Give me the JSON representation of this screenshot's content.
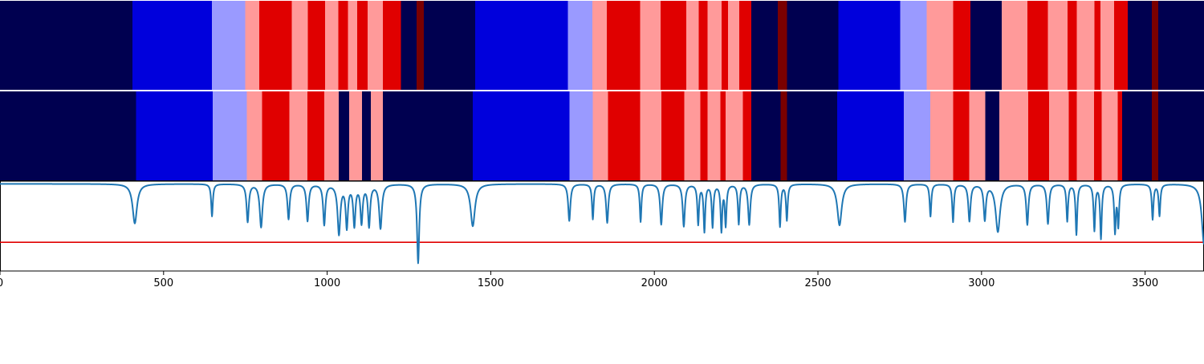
{
  "palette": {
    "dark_navy": "#000050",
    "blue": "#0000dc",
    "light_blue": "#9a9aff",
    "light_red": "#ff9a9a",
    "red": "#e00000",
    "dark_red": "#7a0000",
    "trace": "#1f77b4",
    "threshold": "#e00000"
  },
  "chart_data": {
    "type": "heatmap",
    "title": "",
    "xlabel": "",
    "ylabel": "",
    "xlim": [
      0,
      3680
    ],
    "x_ticks": [
      0,
      500,
      1000,
      1500,
      2000,
      2500,
      3000,
      3500
    ],
    "x_tick_labels": [
      "0",
      "500",
      "1000",
      "1500",
      "2000",
      "2500",
      "3000",
      "3500"
    ],
    "state_rows": [
      {
        "segments": [
          [
            0,
            405,
            "dark_navy"
          ],
          [
            405,
            648,
            "blue"
          ],
          [
            648,
            749,
            "light_blue"
          ],
          [
            749,
            793,
            "light_red"
          ],
          [
            793,
            892,
            "red"
          ],
          [
            892,
            941,
            "light_red"
          ],
          [
            941,
            993,
            "red"
          ],
          [
            993,
            1034,
            "light_red"
          ],
          [
            1034,
            1063,
            "red"
          ],
          [
            1063,
            1092,
            "light_red"
          ],
          [
            1092,
            1124,
            "red"
          ],
          [
            1124,
            1170,
            "light_red"
          ],
          [
            1170,
            1226,
            "red"
          ],
          [
            1226,
            1273,
            "dark_navy"
          ],
          [
            1273,
            1295,
            "dark_red"
          ],
          [
            1295,
            1452,
            "dark_navy"
          ],
          [
            1452,
            1736,
            "blue"
          ],
          [
            1736,
            1810,
            "light_blue"
          ],
          [
            1810,
            1855,
            "light_red"
          ],
          [
            1855,
            1957,
            "red"
          ],
          [
            1957,
            2019,
            "light_red"
          ],
          [
            2019,
            2097,
            "red"
          ],
          [
            2097,
            2136,
            "light_red"
          ],
          [
            2136,
            2163,
            "red"
          ],
          [
            2163,
            2205,
            "light_red"
          ],
          [
            2205,
            2225,
            "red"
          ],
          [
            2225,
            2260,
            "light_red"
          ],
          [
            2260,
            2296,
            "red"
          ],
          [
            2296,
            2377,
            "dark_navy"
          ],
          [
            2377,
            2405,
            "dark_red"
          ],
          [
            2405,
            2563,
            "dark_navy"
          ],
          [
            2563,
            2751,
            "blue"
          ],
          [
            2751,
            2832,
            "light_blue"
          ],
          [
            2832,
            2913,
            "light_red"
          ],
          [
            2913,
            2966,
            "red"
          ],
          [
            2966,
            3062,
            "dark_navy"
          ],
          [
            3062,
            3140,
            "light_red"
          ],
          [
            3140,
            3203,
            "red"
          ],
          [
            3203,
            3263,
            "light_red"
          ],
          [
            3263,
            3291,
            "red"
          ],
          [
            3291,
            3345,
            "light_red"
          ],
          [
            3345,
            3363,
            "red"
          ],
          [
            3363,
            3405,
            "light_red"
          ],
          [
            3405,
            3447,
            "red"
          ],
          [
            3447,
            3521,
            "dark_navy"
          ],
          [
            3521,
            3540,
            "dark_red"
          ],
          [
            3540,
            3680,
            "dark_navy"
          ]
        ]
      },
      {
        "segments": [
          [
            0,
            416,
            "dark_navy"
          ],
          [
            416,
            650,
            "blue"
          ],
          [
            650,
            755,
            "light_blue"
          ],
          [
            755,
            801,
            "light_red"
          ],
          [
            801,
            884,
            "red"
          ],
          [
            884,
            940,
            "light_red"
          ],
          [
            940,
            991,
            "red"
          ],
          [
            991,
            1035,
            "light_red"
          ],
          [
            1035,
            1067,
            "dark_navy"
          ],
          [
            1067,
            1106,
            "light_red"
          ],
          [
            1106,
            1133,
            "dark_navy"
          ],
          [
            1133,
            1170,
            "light_red"
          ],
          [
            1170,
            1445,
            "dark_navy"
          ],
          [
            1445,
            1741,
            "blue"
          ],
          [
            1741,
            1812,
            "light_blue"
          ],
          [
            1812,
            1858,
            "light_red"
          ],
          [
            1858,
            1957,
            "red"
          ],
          [
            1957,
            2022,
            "light_red"
          ],
          [
            2022,
            2091,
            "red"
          ],
          [
            2091,
            2141,
            "light_red"
          ],
          [
            2141,
            2163,
            "red"
          ],
          [
            2163,
            2202,
            "light_red"
          ],
          [
            2202,
            2218,
            "red"
          ],
          [
            2218,
            2270,
            "light_red"
          ],
          [
            2270,
            2296,
            "red"
          ],
          [
            2296,
            2386,
            "dark_navy"
          ],
          [
            2386,
            2405,
            "dark_red"
          ],
          [
            2405,
            2559,
            "dark_navy"
          ],
          [
            2559,
            2763,
            "blue"
          ],
          [
            2763,
            2844,
            "light_blue"
          ],
          [
            2844,
            2913,
            "light_red"
          ],
          [
            2913,
            2962,
            "red"
          ],
          [
            2962,
            3011,
            "light_red"
          ],
          [
            3011,
            3054,
            "dark_navy"
          ],
          [
            3054,
            3143,
            "light_red"
          ],
          [
            3143,
            3207,
            "red"
          ],
          [
            3207,
            3266,
            "light_red"
          ],
          [
            3266,
            3291,
            "red"
          ],
          [
            3291,
            3344,
            "light_red"
          ],
          [
            3344,
            3367,
            "red"
          ],
          [
            3367,
            3416,
            "light_red"
          ],
          [
            3416,
            3430,
            "red"
          ],
          [
            3430,
            3520,
            "dark_navy"
          ],
          [
            3520,
            3540,
            "dark_red"
          ],
          [
            3540,
            3680,
            "dark_navy"
          ]
        ]
      }
    ],
    "trace_panel": {
      "ylim": [
        0,
        1
      ],
      "baseline": 0.97,
      "threshold": 0.32,
      "dips": [
        [
          412,
          0.53,
          8
        ],
        [
          648,
          0.61,
          3
        ],
        [
          757,
          0.55,
          4
        ],
        [
          798,
          0.49,
          5
        ],
        [
          882,
          0.58,
          4
        ],
        [
          940,
          0.56,
          4
        ],
        [
          991,
          0.52,
          4
        ],
        [
          1036,
          0.42,
          5
        ],
        [
          1060,
          0.5,
          4
        ],
        [
          1083,
          0.52,
          4
        ],
        [
          1105,
          0.55,
          4
        ],
        [
          1128,
          0.51,
          4
        ],
        [
          1163,
          0.48,
          5
        ],
        [
          1278,
          0.09,
          4
        ],
        [
          1445,
          0.5,
          8
        ],
        [
          1740,
          0.56,
          4
        ],
        [
          1812,
          0.58,
          3
        ],
        [
          1856,
          0.54,
          4
        ],
        [
          1958,
          0.55,
          3
        ],
        [
          2021,
          0.52,
          4
        ],
        [
          2090,
          0.5,
          4
        ],
        [
          2134,
          0.53,
          3
        ],
        [
          2153,
          0.45,
          3
        ],
        [
          2178,
          0.5,
          3
        ],
        [
          2205,
          0.46,
          3
        ],
        [
          2218,
          0.52,
          3
        ],
        [
          2258,
          0.53,
          3
        ],
        [
          2290,
          0.52,
          4
        ],
        [
          2384,
          0.5,
          3
        ],
        [
          2405,
          0.57,
          3
        ],
        [
          2566,
          0.51,
          8
        ],
        [
          2766,
          0.55,
          4
        ],
        [
          2844,
          0.61,
          3
        ],
        [
          2913,
          0.55,
          3
        ],
        [
          2963,
          0.56,
          4
        ],
        [
          3010,
          0.58,
          4
        ],
        [
          3050,
          0.44,
          8
        ],
        [
          3140,
          0.52,
          4
        ],
        [
          3203,
          0.53,
          4
        ],
        [
          3262,
          0.56,
          3
        ],
        [
          3290,
          0.41,
          3
        ],
        [
          3345,
          0.46,
          3
        ],
        [
          3365,
          0.37,
          3
        ],
        [
          3408,
          0.45,
          3
        ],
        [
          3418,
          0.52,
          3
        ],
        [
          3523,
          0.58,
          3
        ],
        [
          3544,
          0.62,
          3
        ],
        [
          3680,
          0.3,
          8
        ]
      ]
    }
  }
}
